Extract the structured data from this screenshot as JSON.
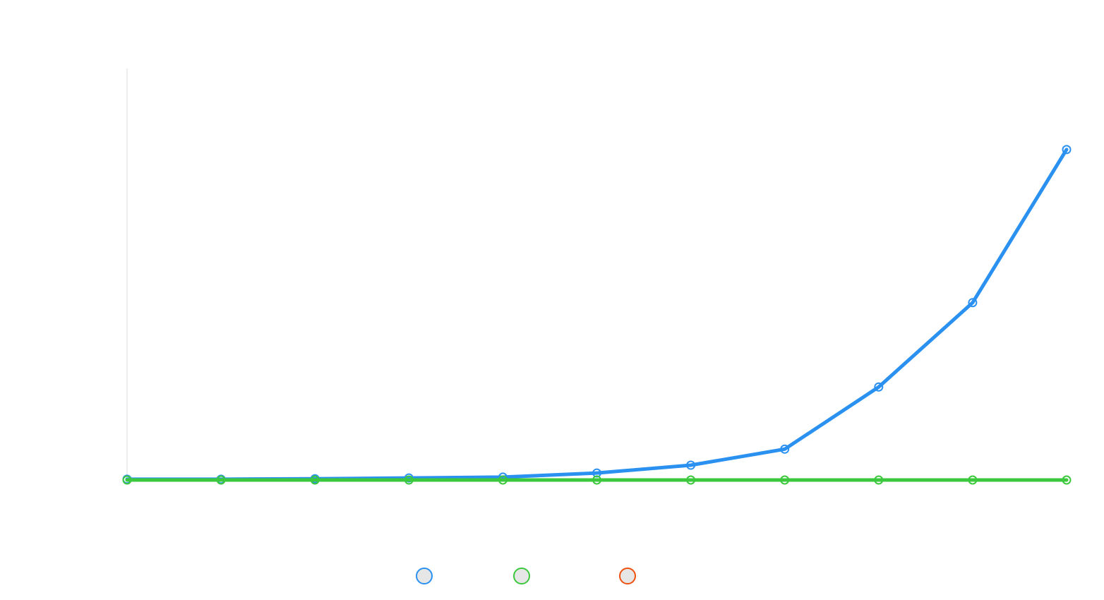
{
  "chart_data": {
    "type": "line",
    "categories": [
      null,
      null,
      null,
      null,
      null,
      null,
      null,
      null,
      null,
      null,
      null
    ],
    "series": [
      {
        "color": "#2b91f0",
        "values": [
          0.2,
          0.2,
          0.3,
          0.5,
          0.7,
          1.7,
          3.6,
          7.5,
          22.6,
          43.1,
          80.3
        ]
      },
      {
        "color": "#3cc83c",
        "values": [
          0,
          0,
          0,
          0,
          0,
          0,
          0,
          0,
          0,
          0,
          0
        ]
      },
      {
        "color": "#f0500f",
        "values": [
          null,
          null,
          null,
          null,
          null,
          null,
          null,
          null,
          null,
          null,
          null
        ]
      }
    ],
    "ylim": [
      0,
      100
    ]
  }
}
